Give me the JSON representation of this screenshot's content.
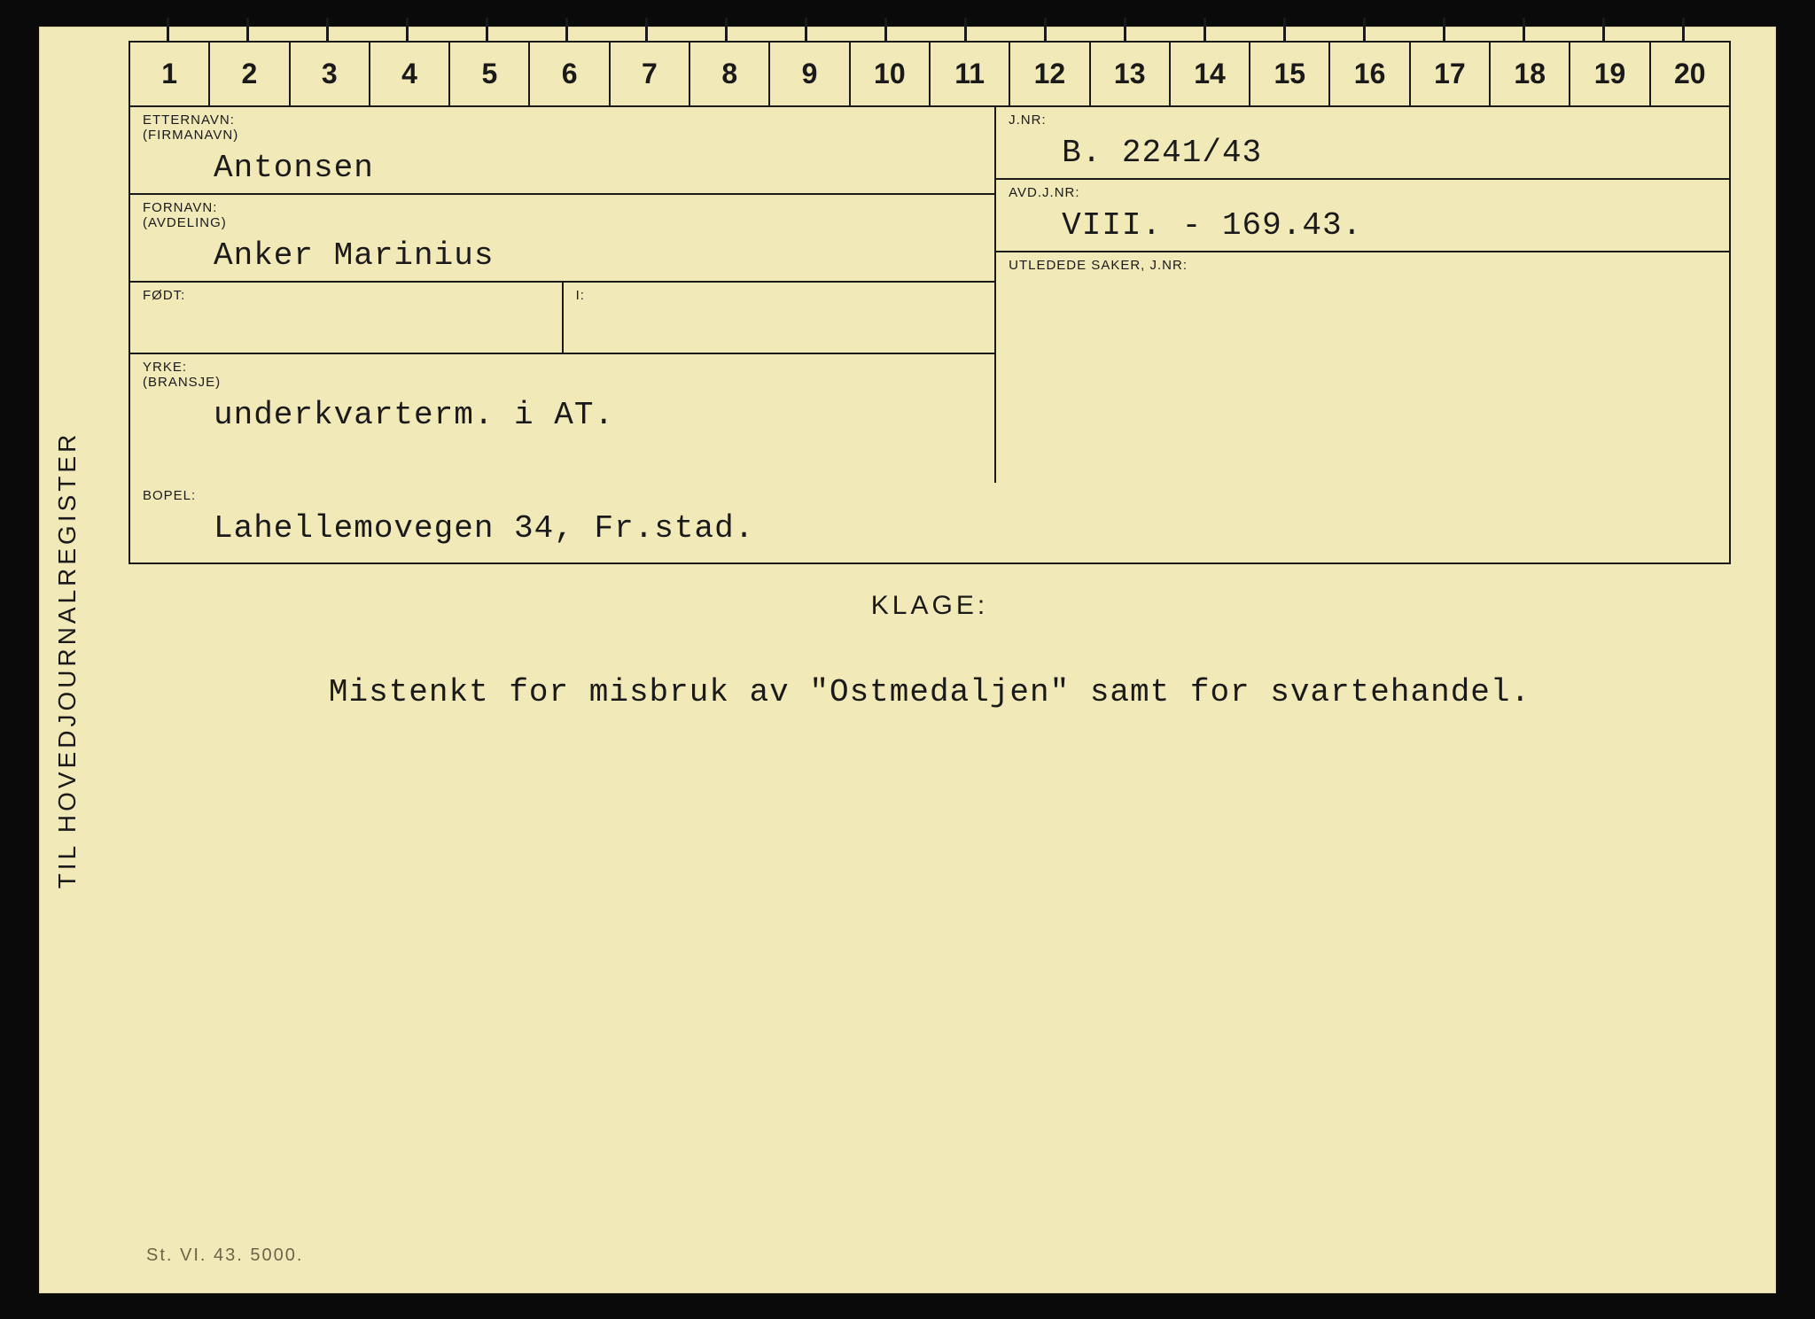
{
  "card": {
    "background_color": "#f2e9b8",
    "border_color": "#1a1a1a",
    "side_label": "TIL HOVEDJOURNALREGISTER",
    "ruler_numbers": [
      "1",
      "2",
      "3",
      "4",
      "5",
      "6",
      "7",
      "8",
      "9",
      "10",
      "11",
      "12",
      "13",
      "14",
      "15",
      "16",
      "17",
      "18",
      "19",
      "20"
    ],
    "fields": {
      "etternavn": {
        "label": "ETTERNAVN:",
        "sublabel": "(FIRMANAVN)",
        "value": "Antonsen"
      },
      "fornavn": {
        "label": "FORNAVN:",
        "sublabel": "(AVDELING)",
        "value": "Anker Marinius"
      },
      "fodt": {
        "label": "FØDT:",
        "label2": "I:",
        "value": ""
      },
      "yrke": {
        "label": "YRKE:",
        "sublabel": "(BRANSJE)",
        "value": "underkvarterm. i AT."
      },
      "bopel": {
        "label": "BOPEL:",
        "value": "Lahellemovegen 34, Fr.stad."
      },
      "jnr": {
        "label": "J.NR:",
        "value": "B. 2241/43"
      },
      "avdjnr": {
        "label": "AVD.J.NR:",
        "value": "VIII. - 169.43."
      },
      "utledede": {
        "label": "UTLEDEDE SAKER, J.NR:",
        "value": ""
      }
    },
    "klage": {
      "title": "KLAGE:",
      "text": "Mistenkt for misbruk av \"Ostmedaljen\" samt for svartehandel."
    },
    "footer_code": "St. VI. 43. 5000.",
    "typography": {
      "label_fontsize": 15,
      "value_fontsize": 36,
      "value_font": "Courier New",
      "ruler_fontsize": 32,
      "side_label_fontsize": 28
    }
  }
}
